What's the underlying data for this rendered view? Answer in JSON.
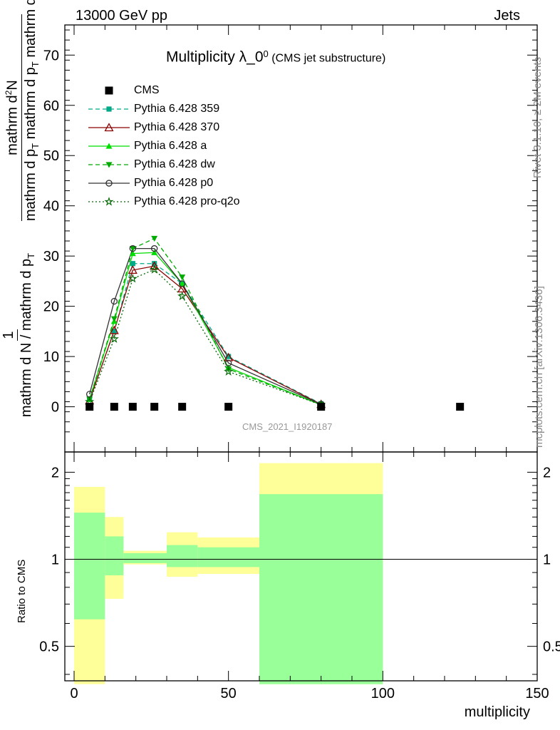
{
  "header": {
    "left": "13000 GeV pp",
    "right": "Jets"
  },
  "side_labels": {
    "rivet": "Rivet 3.1.10, ≥ 2M events",
    "mcplots": "mcplots.cern.ch [arXiv:1306.3436]"
  },
  "watermark": "CMS_2021_I1920187",
  "title": {
    "main": "Multiplicity λ_0",
    "sup": "0",
    "sub": "(CMS jet substructure)"
  },
  "ylabel_top": {
    "frac1_num": "1",
    "frac1_den": "mathrm d N / mathrm d p",
    "frac1_den_sub": "T",
    "frac2_num": "mathrm d",
    "frac2_num_sup": "2",
    "frac2_num_end": "N",
    "frac2_den": "mathrm d p",
    "frac2_den_sub": "T",
    "frac2_den_end": " mathrm d p",
    "frac2_den_sub2": "T",
    "frac2_den_end2": " mathrm d lambda"
  },
  "ylabel_bottom": "Ratio to CMS",
  "xlabel": "multiplicity",
  "chart_data": {
    "type": "line",
    "x_axis": {
      "range": [
        -3,
        150
      ],
      "ticks": [
        0,
        50,
        100,
        150
      ]
    },
    "y_axis_main": {
      "range": [
        -9,
        76
      ],
      "ticks": [
        0,
        10,
        20,
        30,
        40,
        50,
        60,
        70
      ]
    },
    "y_axis_ratio": {
      "range": [
        0.38,
        2.35
      ],
      "ticks": [
        0.5,
        1,
        2
      ],
      "scale": "log"
    },
    "legend_position": "top-left",
    "cms": {
      "name": "CMS",
      "x": [
        5,
        13,
        19,
        26,
        35,
        50,
        80,
        125
      ],
      "y": [
        0,
        0,
        0,
        0,
        0,
        0,
        0,
        0
      ]
    },
    "series": [
      {
        "name": "Pythia 6.428 359",
        "color": "#00aa88",
        "dash": "6,4",
        "marker": "square",
        "x": [
          5,
          13,
          19,
          26,
          35,
          50,
          80
        ],
        "y": [
          1.5,
          15,
          28.5,
          28.5,
          24.5,
          10,
          0.6
        ]
      },
      {
        "name": "Pythia 6.428 370",
        "color": "#8b0000",
        "dash": "",
        "marker": "triangle-open",
        "x": [
          5,
          13,
          19,
          26,
          35,
          50,
          80
        ],
        "y": [
          1.2,
          15.2,
          27.2,
          28,
          23.5,
          9.8,
          0.5
        ]
      },
      {
        "name": "Pythia 6.428 a",
        "color": "#00dd00",
        "dash": "",
        "marker": "triangle",
        "x": [
          5,
          13,
          19,
          26,
          35,
          50,
          80
        ],
        "y": [
          1.5,
          17,
          30.5,
          30.7,
          24.5,
          7.8,
          0.4
        ]
      },
      {
        "name": "Pythia 6.428 dw",
        "color": "#00aa00",
        "dash": "6,4",
        "marker": "triangle-down",
        "x": [
          5,
          13,
          19,
          26,
          35,
          50,
          80
        ],
        "y": [
          1.5,
          17.5,
          31.5,
          33.5,
          25.8,
          7.5,
          0.4
        ]
      },
      {
        "name": "Pythia 6.428 p0",
        "color": "#333333",
        "dash": "",
        "marker": "circle-open",
        "x": [
          5,
          13,
          19,
          26,
          35,
          50,
          80
        ],
        "y": [
          2.5,
          21,
          31.5,
          31.5,
          24.5,
          8.7,
          0.5
        ]
      },
      {
        "name": "Pythia 6.428 pro-q2o",
        "color": "#006600",
        "dash": "2,3",
        "marker": "star",
        "x": [
          5,
          13,
          19,
          26,
          35,
          50,
          80
        ],
        "y": [
          1,
          13.5,
          25.5,
          27.3,
          22,
          7,
          0.4
        ]
      }
    ],
    "ratio_bands": [
      {
        "xlo": 0,
        "xhi": 10,
        "yellow": [
          0.37,
          1.78
        ],
        "green": [
          0.62,
          1.45
        ]
      },
      {
        "xlo": 10,
        "xhi": 16,
        "yellow": [
          0.73,
          1.4
        ],
        "green": [
          0.88,
          1.2
        ]
      },
      {
        "xlo": 16,
        "xhi": 30,
        "yellow": [
          0.96,
          1.07
        ],
        "green": [
          0.97,
          1.05
        ]
      },
      {
        "xlo": 30,
        "xhi": 40,
        "yellow": [
          0.87,
          1.24
        ],
        "green": [
          0.94,
          1.12
        ]
      },
      {
        "xlo": 40,
        "xhi": 60,
        "yellow": [
          0.89,
          1.19
        ],
        "green": [
          0.94,
          1.1
        ]
      },
      {
        "xlo": 60,
        "xhi": 100,
        "yellow": [
          0.37,
          2.15
        ],
        "green": [
          0.37,
          1.68
        ]
      }
    ]
  }
}
